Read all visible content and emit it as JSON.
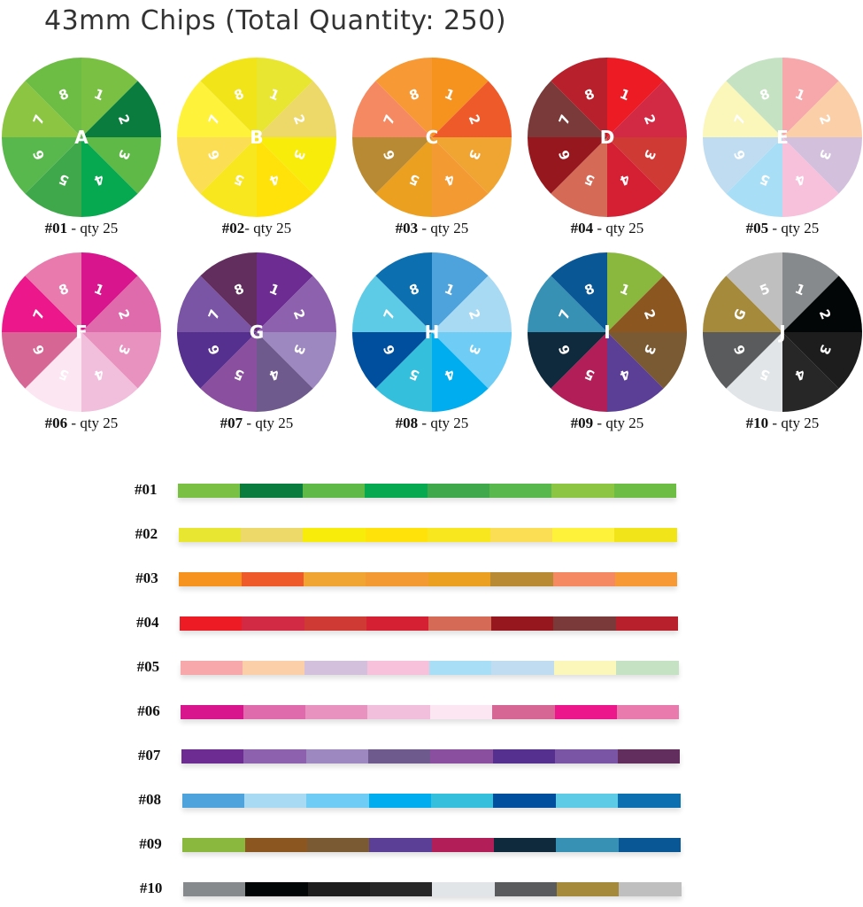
{
  "title": "43mm Chips (Total Quantity: 250)",
  "chips": [
    {
      "id": "#01",
      "separator": " - ",
      "qty_text": "qty 25",
      "letter": "A",
      "slots": [
        "1",
        "2",
        "3",
        "4",
        "5",
        "6",
        "7",
        "8"
      ],
      "colors": [
        "#7ac143",
        "#0a7d3e",
        "#5fb947",
        "#06a94f",
        "#3fa84a",
        "#59b84d",
        "#8bc541",
        "#6dbd45"
      ]
    },
    {
      "id": "#02",
      "separator": "- ",
      "qty_text": "qty 25",
      "letter": "B",
      "slots": [
        "1",
        "2",
        "3",
        "4",
        "5",
        "6",
        "7",
        "8"
      ],
      "colors": [
        "#e8e630",
        "#ecd96a",
        "#f7ec0a",
        "#ffe20a",
        "#f8e71e",
        "#fcde55",
        "#fff23a",
        "#f1e51a"
      ]
    },
    {
      "id": "#03",
      "separator": " - ",
      "qty_text": "qty 25",
      "letter": "C",
      "slots": [
        "1",
        "2",
        "3",
        "4",
        "5",
        "6",
        "7",
        "8"
      ],
      "colors": [
        "#f6921e",
        "#ee5a2a",
        "#f0a532",
        "#f39a32",
        "#eba020",
        "#b88a34",
        "#f58961",
        "#f79a36"
      ]
    },
    {
      "id": "#04",
      "separator": " - ",
      "qty_text": "qty 25",
      "letter": "D",
      "slots": [
        "1",
        "2",
        "3",
        "4",
        "5",
        "6",
        "7",
        "8"
      ],
      "colors": [
        "#ed1c24",
        "#d22a45",
        "#cf3a35",
        "#d52034",
        "#d56b57",
        "#96171d",
        "#7b3a3a",
        "#b8202b"
      ]
    },
    {
      "id": "#05",
      "separator": " - ",
      "qty_text": "qty 25",
      "letter": "E",
      "slots": [
        "1",
        "2",
        "3",
        "4",
        "5",
        "6",
        "7",
        "8"
      ],
      "colors": [
        "#f7a8ab",
        "#fbcfa8",
        "#d3c0dd",
        "#f7c1db",
        "#a9def7",
        "#bfdcf1",
        "#fbf6ba",
        "#c5e3c3"
      ]
    },
    {
      "id": "#06",
      "separator": " - ",
      "qty_text": "qty 25",
      "letter": "F",
      "slots": [
        "1",
        "2",
        "3",
        "4",
        "5",
        "6",
        "7",
        "8"
      ],
      "colors": [
        "#d8158d",
        "#df6aac",
        "#e892c0",
        "#f1bedc",
        "#fce6f2",
        "#d66694",
        "#ec178a",
        "#e97aae"
      ]
    },
    {
      "id": "#07",
      "separator": " - ",
      "qty_text": "qty 25",
      "letter": "G",
      "slots": [
        "1",
        "2",
        "3",
        "4",
        "5",
        "6",
        "7",
        "8"
      ],
      "colors": [
        "#6d2c91",
        "#8d61ad",
        "#9d88c0",
        "#6e5a8c",
        "#8a4f9e",
        "#56308f",
        "#7a55a5",
        "#612e5e"
      ]
    },
    {
      "id": "#08",
      "separator": " - ",
      "qty_text": "qty 25",
      "letter": "H",
      "slots": [
        "1",
        "2",
        "3",
        "4",
        "5",
        "6",
        "7",
        "8"
      ],
      "colors": [
        "#4fa3dc",
        "#a8daf4",
        "#6fcdf5",
        "#00aeef",
        "#34bfdc",
        "#004f9f",
        "#5ecbe6",
        "#0c6fb0"
      ]
    },
    {
      "id": "#09",
      "separator": " - ",
      "qty_text": "qty 25",
      "letter": "I",
      "slots": [
        "1",
        "2",
        "3",
        "4",
        "5",
        "6",
        "7",
        "8"
      ],
      "colors": [
        "#8ab83f",
        "#8c5621",
        "#7a5a32",
        "#5b3f97",
        "#b21f58",
        "#0f2a3d",
        "#3691b5",
        "#0a5796"
      ]
    },
    {
      "id": "#10",
      "separator": " - ",
      "qty_text": "qty 25",
      "letter": "J",
      "slots": [
        "1",
        "2",
        "3",
        "4",
        "5",
        "6",
        "7",
        "8"
      ],
      "slot_overrides": {
        "7": "G",
        "8": "5"
      },
      "colors": [
        "#868a8c",
        "#030606",
        "#1d1d1d",
        "#272727",
        "#e1e5e8",
        "#5a5b5d",
        "#a68a3b",
        "#bfbfbf"
      ]
    }
  ]
}
